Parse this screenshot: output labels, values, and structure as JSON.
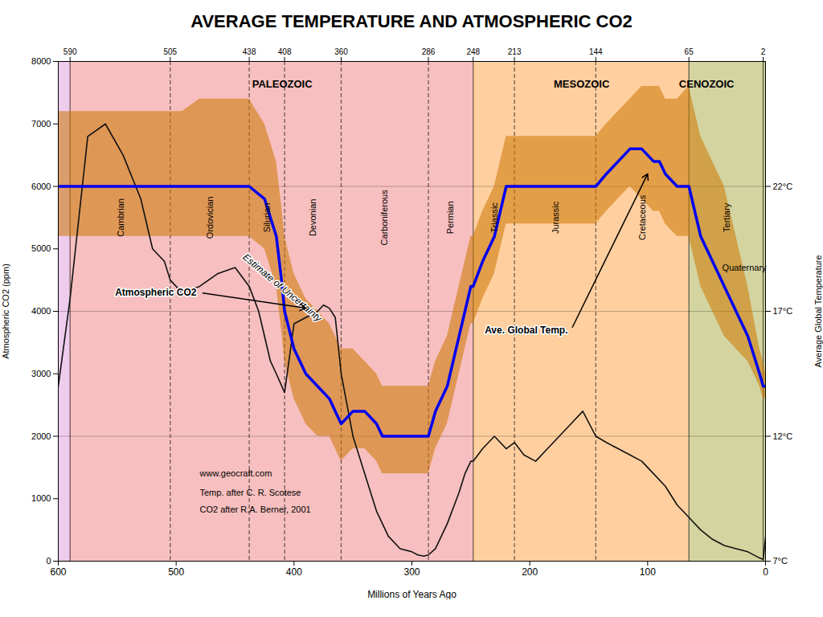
{
  "chart_data": {
    "type": "line",
    "title": "AVERAGE TEMPERATURE AND ATMOSPHERIC CO2",
    "xlabel": "Millions of Years Ago",
    "ylabel": "Atmospheric CO2 (ppm)",
    "y2label": "Average Global Temperature",
    "xlim": [
      600,
      0
    ],
    "xticks": [
      600,
      500,
      400,
      300,
      200,
      100,
      0
    ],
    "x2ticks": [
      590,
      505,
      438,
      408,
      360,
      286,
      248,
      213,
      144,
      65,
      2
    ],
    "ylim": [
      0,
      8000
    ],
    "yticks": [
      0,
      1000,
      2000,
      3000,
      4000,
      5000,
      6000,
      7000,
      8000
    ],
    "y2lim": [
      7,
      27
    ],
    "y2ticks": [
      {
        "value": 7,
        "label": "7°C"
      },
      {
        "value": 12,
        "label": "12°C"
      },
      {
        "value": 17,
        "label": "17°C"
      },
      {
        "value": 22,
        "label": "22°C"
      }
    ],
    "grid": "y2",
    "legend": false,
    "series": [
      {
        "name": "Estimate of Uncertainty",
        "type": "area",
        "axis": "y2",
        "color": "#CC7700",
        "label": {
          "x": 410,
          "y": 5600
        },
        "x": [
          600,
          590,
          575,
          560,
          545,
          530,
          520,
          510,
          505,
          495,
          480,
          465,
          450,
          438,
          425,
          415,
          410,
          408,
          400,
          390,
          380,
          370,
          365,
          360,
          350,
          340,
          330,
          325,
          320,
          310,
          300,
          290,
          286,
          280,
          270,
          265,
          260,
          255,
          250,
          248,
          240,
          230,
          225,
          220,
          215,
          213,
          205,
          195,
          185,
          175,
          165,
          155,
          144,
          135,
          125,
          115,
          105,
          95,
          90,
          85,
          75,
          65,
          60,
          55,
          50,
          45,
          40,
          35,
          25,
          15,
          5,
          2,
          0
        ],
        "lower": [
          20,
          20,
          20,
          20,
          20,
          20,
          20,
          20,
          20,
          20,
          20,
          20,
          20,
          20,
          19.5,
          18,
          16,
          15,
          13.5,
          12.5,
          12,
          12,
          11.5,
          11,
          11.5,
          11.5,
          11,
          10.5,
          10.5,
          10.5,
          10.5,
          10.5,
          10.5,
          11.5,
          12.5,
          13.5,
          14.5,
          15.5,
          16.5,
          16.5,
          17.5,
          18.5,
          19.5,
          20.5,
          20.5,
          20.5,
          20.5,
          20.5,
          20.5,
          20.5,
          20.5,
          20.5,
          20.5,
          21,
          21.5,
          22,
          21.5,
          21,
          21,
          20.5,
          20,
          20,
          19,
          18,
          17.5,
          17,
          16.5,
          16,
          15.5,
          15,
          14,
          13.5,
          13.5
        ],
        "upper": [
          25,
          25,
          25,
          25,
          25,
          25,
          25,
          25,
          25,
          25,
          25.5,
          25.5,
          25.5,
          25.5,
          24.5,
          23,
          21,
          20,
          18.5,
          17.5,
          17,
          16.5,
          16,
          15.5,
          15.5,
          15,
          14.5,
          14,
          14,
          14,
          14,
          14,
          14,
          15,
          16,
          17,
          18,
          19,
          20,
          20,
          21,
          22,
          23,
          24,
          24,
          24,
          24,
          24,
          24,
          24,
          24,
          24,
          24,
          24.5,
          25,
          25.5,
          26,
          26,
          26,
          25.5,
          25.5,
          26,
          25,
          24,
          23.5,
          23,
          22.5,
          22,
          20,
          18,
          15.5,
          15,
          14.5
        ]
      },
      {
        "name": "Atmospheric CO2",
        "type": "line",
        "color": "#111111",
        "label": {
          "x": 480,
          "y": 4300,
          "arrow_to": {
            "x": 390,
            "y": 4050
          }
        },
        "x": [
          600,
          590,
          575,
          560,
          545,
          530,
          520,
          510,
          505,
          495,
          480,
          465,
          450,
          438,
          430,
          420,
          415,
          408,
          400,
          390,
          380,
          375,
          370,
          365,
          360,
          350,
          340,
          330,
          320,
          310,
          300,
          295,
          290,
          286,
          280,
          270,
          260,
          255,
          250,
          248,
          240,
          230,
          220,
          213,
          205,
          195,
          185,
          175,
          165,
          155,
          144,
          135,
          125,
          115,
          105,
          95,
          85,
          75,
          65,
          55,
          45,
          35,
          25,
          15,
          5,
          2,
          0
        ],
        "values": [
          2800,
          4200,
          6800,
          7000,
          6500,
          5800,
          5000,
          4800,
          4500,
          4300,
          4400,
          4600,
          4700,
          4400,
          4000,
          3200,
          3000,
          2700,
          3800,
          3900,
          4000,
          4100,
          4050,
          3900,
          3000,
          2000,
          1400,
          800,
          400,
          200,
          150,
          100,
          80,
          100,
          200,
          600,
          1100,
          1400,
          1600,
          1600,
          1800,
          2000,
          1800,
          1900,
          1700,
          1600,
          1800,
          2000,
          2200,
          2400,
          2000,
          1900,
          1800,
          1700,
          1600,
          1400,
          1200,
          900,
          700,
          500,
          350,
          250,
          200,
          150,
          50,
          30,
          380
        ]
      },
      {
        "name": "Ave. Global Temp.",
        "type": "line",
        "axis": "y2",
        "color": "#0000EE",
        "label": {
          "x": 165,
          "y": 3700,
          "arrow_to": {
            "x": 100,
            "y": 22.5,
            "axis": "y2"
          }
        },
        "x": [
          600,
          590,
          575,
          560,
          545,
          530,
          520,
          510,
          505,
          495,
          480,
          465,
          450,
          438,
          425,
          415,
          410,
          408,
          400,
          390,
          380,
          370,
          365,
          360,
          350,
          340,
          330,
          325,
          320,
          310,
          300,
          290,
          286,
          280,
          270,
          265,
          260,
          255,
          250,
          248,
          240,
          230,
          225,
          220,
          215,
          213,
          205,
          195,
          185,
          175,
          165,
          155,
          144,
          135,
          125,
          115,
          105,
          95,
          90,
          85,
          75,
          65,
          60,
          55,
          50,
          45,
          40,
          35,
          25,
          15,
          5,
          2,
          0
        ],
        "values": [
          22,
          22,
          22,
          22,
          22,
          22,
          22,
          22,
          22,
          22,
          22,
          22,
          22,
          22,
          21.5,
          20,
          18,
          17,
          15.5,
          14.5,
          14,
          13.5,
          13,
          12.5,
          13,
          13,
          12.5,
          12,
          12,
          12,
          12,
          12,
          12,
          13,
          14,
          15,
          16,
          17,
          18,
          18,
          19,
          20,
          21,
          22,
          22,
          22,
          22,
          22,
          22,
          22,
          22,
          22,
          22,
          22.5,
          23,
          23.5,
          23.5,
          23,
          23,
          22.5,
          22,
          22,
          21,
          20,
          19.5,
          19,
          18.5,
          18,
          17,
          16,
          14.5,
          14,
          14
        ]
      }
    ],
    "eras": [
      {
        "start": 600,
        "end": 590,
        "color": "#DD99DD"
      },
      {
        "name": "PALEOZOIC",
        "start": 590,
        "end": 248,
        "color": "#F08080",
        "label_x": 410,
        "label_y": 7700
      },
      {
        "name": "MESOZOIC",
        "start": 248,
        "end": 65,
        "color": "#FFA040",
        "label_x": 156,
        "label_y": 7700
      },
      {
        "name": "CENOZOIC",
        "start": 65,
        "end": 0,
        "color": "#AAAA44",
        "label_x": 50,
        "label_y": 7700
      }
    ],
    "period_lines": [
      {
        "x": 590,
        "line_style": "solid"
      },
      {
        "x": 505,
        "line_style": "dashed"
      },
      {
        "x": 438,
        "line_style": "dashed"
      },
      {
        "x": 408,
        "line_style": "dashed"
      },
      {
        "x": 360,
        "line_style": "dashed"
      },
      {
        "x": 286,
        "line_style": "dashed"
      },
      {
        "x": 248,
        "line_style": "solid"
      },
      {
        "x": 213,
        "line_style": "dashed"
      },
      {
        "x": 144,
        "line_style": "dashed"
      },
      {
        "x": 65,
        "line_style": "solid"
      },
      {
        "x": 2,
        "line_style": "solid"
      }
    ],
    "period_labels": [
      {
        "text": "Cambrian",
        "x": 547,
        "y": 5500
      },
      {
        "text": "Ordovician",
        "x": 471,
        "y": 5500
      },
      {
        "text": "Silurian",
        "x": 423,
        "y": 5500
      },
      {
        "text": "Devonian",
        "x": 384,
        "y": 5500
      },
      {
        "text": "Carboniferous",
        "x": 323,
        "y": 5500
      },
      {
        "text": "Permian",
        "x": 267,
        "y": 5500
      },
      {
        "text": "Triassic",
        "x": 230,
        "y": 5500
      },
      {
        "text": "Jurassic",
        "x": 178,
        "y": 5500
      },
      {
        "text": "Cretaceous",
        "x": 104,
        "y": 5500
      },
      {
        "text": "Tertiary",
        "x": 33,
        "y": 5500
      }
    ],
    "annotations": [
      {
        "text": "Quaternary",
        "x": 18,
        "y": 4700
      }
    ],
    "credits": [
      {
        "text": "www.geocraft.com",
        "x": 480,
        "y": 1400
      },
      {
        "text": "Temp. after C. R. Scotese",
        "x": 480,
        "y": 1100
      },
      {
        "text": "CO2 after R.A. Berner, 2001",
        "x": 480,
        "y": 820
      }
    ]
  }
}
